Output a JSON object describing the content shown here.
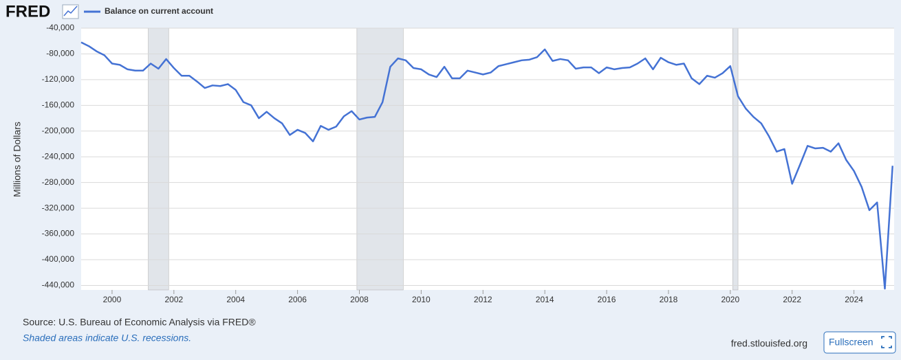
{
  "header": {
    "logo": "FRED"
  },
  "chart_data": {
    "type": "line",
    "y_label": "Millions of Dollars",
    "x": [
      1999,
      1999.25,
      1999.5,
      1999.75,
      2000,
      2000.25,
      2000.5,
      2000.75,
      2001,
      2001.25,
      2001.5,
      2001.75,
      2002,
      2002.25,
      2002.5,
      2002.75,
      2003,
      2003.25,
      2003.5,
      2003.75,
      2004,
      2004.25,
      2004.5,
      2004.75,
      2005,
      2005.25,
      2005.5,
      2005.75,
      2006,
      2006.25,
      2006.5,
      2006.75,
      2007,
      2007.25,
      2007.5,
      2007.75,
      2008,
      2008.25,
      2008.5,
      2008.75,
      2009,
      2009.25,
      2009.5,
      2009.75,
      2010,
      2010.25,
      2010.5,
      2010.75,
      2011,
      2011.25,
      2011.5,
      2011.75,
      2012,
      2012.25,
      2012.5,
      2012.75,
      2013,
      2013.25,
      2013.5,
      2013.75,
      2014,
      2014.25,
      2014.5,
      2014.75,
      2015,
      2015.25,
      2015.5,
      2015.75,
      2016,
      2016.25,
      2016.5,
      2016.75,
      2017,
      2017.25,
      2017.5,
      2017.75,
      2018,
      2018.25,
      2018.5,
      2018.75,
      2019,
      2019.25,
      2019.5,
      2019.75,
      2020,
      2020.25,
      2020.5,
      2020.75,
      2021,
      2021.25,
      2021.5,
      2021.75,
      2022,
      2022.25,
      2022.5,
      2022.75,
      2023,
      2023.25,
      2023.5,
      2023.75,
      2024,
      2024.25,
      2024.5,
      2024.75,
      2025,
      2025.25
    ],
    "series": [
      {
        "name": "Balance on current account",
        "color": "#4472d4",
        "values": [
          -62000,
          -68000,
          -76000,
          -82000,
          -95000,
          -97000,
          -104000,
          -106000,
          -106000,
          -95000,
          -103000,
          -88000,
          -102000,
          -114000,
          -114000,
          -123000,
          -133000,
          -129000,
          -130000,
          -127000,
          -136000,
          -155000,
          -160000,
          -180000,
          -170000,
          -180000,
          -188000,
          -206000,
          -198000,
          -203000,
          -216000,
          -192000,
          -198000,
          -193000,
          -177000,
          -169000,
          -182000,
          -179000,
          -178000,
          -155000,
          -100000,
          -87000,
          -90000,
          -102000,
          -104000,
          -112000,
          -116000,
          -100000,
          -118000,
          -118000,
          -106000,
          -109000,
          -112000,
          -109000,
          -99000,
          -96000,
          -93000,
          -90000,
          -89000,
          -85000,
          -73000,
          -91000,
          -88000,
          -90000,
          -103000,
          -101000,
          -101000,
          -110000,
          -101000,
          -104000,
          -102000,
          -101000,
          -95000,
          -87000,
          -104000,
          -86000,
          -93000,
          -97000,
          -95000,
          -118000,
          -127000,
          -114000,
          -117000,
          -110000,
          -99000,
          -146000,
          -165000,
          -178000,
          -188000,
          -208000,
          -232000,
          -228000,
          -282000,
          -253000,
          -223000,
          -227000,
          -226000,
          -232000,
          -219000,
          -245000,
          -262000,
          -287000,
          -323000,
          -311000,
          -445000,
          -254000
        ]
      }
    ],
    "recessions": [
      [
        2001.17,
        2001.83
      ],
      [
        2007.92,
        2009.42
      ],
      [
        2020.08,
        2020.25
      ]
    ],
    "xlim": [
      1999,
      2025.3
    ],
    "ylim": [
      -447000,
      -40000
    ],
    "xticks": [
      2000,
      2002,
      2004,
      2006,
      2008,
      2010,
      2012,
      2014,
      2016,
      2018,
      2020,
      2022,
      2024
    ],
    "yticks": [
      {
        "value": -40000,
        "label": "-40,000"
      },
      {
        "value": -80000,
        "label": "-80,000"
      },
      {
        "value": -120000,
        "label": "-120,000"
      },
      {
        "value": -160000,
        "label": "-160,000"
      },
      {
        "value": -200000,
        "label": "-200,000"
      },
      {
        "value": -240000,
        "label": "-240,000"
      },
      {
        "value": -280000,
        "label": "-280,000"
      },
      {
        "value": -320000,
        "label": "-320,000"
      },
      {
        "value": -360000,
        "label": "-360,000"
      },
      {
        "value": -400000,
        "label": "-400,000"
      },
      {
        "value": -440000,
        "label": "-440,000"
      }
    ],
    "grid": true
  },
  "footer": {
    "source": "Source: U.S. Bureau of Economic Analysis via FRED®",
    "note": "Shaded areas indicate U.S. recessions.",
    "site": "fred.stlouisfed.org",
    "button": "Fullscreen"
  }
}
